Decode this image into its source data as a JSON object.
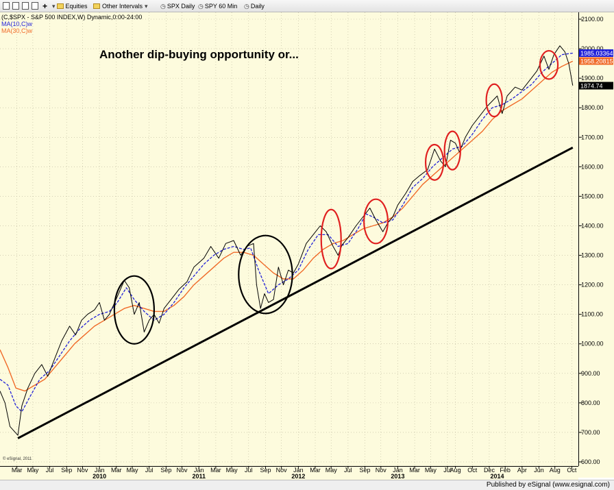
{
  "toolbar": {
    "equities_label": "Equities",
    "other_intervals_label": "Other Intervals",
    "spx_daily_label": "SPX Daily",
    "spy_60min_label": "SPY 60 Min",
    "daily_label": "Daily"
  },
  "legend": {
    "series_title": "(C,$SPX - S&P 500 INDEX,W) Dynamic,0:00-24:00",
    "ma10_label": "MA(10,C)w",
    "ma30_label": "MA(30,C)w"
  },
  "annotation_text": "Another dip-buying opportunity or...",
  "copyright": "© eSignal, 2011",
  "footer_text": "Published by eSignal (www.esignal.com)",
  "price_tags": {
    "ma10": "1985.03364",
    "ma30": "1958.20815",
    "last": "1874.74"
  },
  "colors": {
    "price": "#000000",
    "ma10": "#1f1fd8",
    "ma30": "#f06a28",
    "trendline": "#000000",
    "circles_2010_2011": "#000000",
    "circles_2012_2014": "#e02020",
    "background": "#fdfbdd"
  },
  "chart_data": {
    "type": "line",
    "title": "",
    "ylim": [
      600,
      2100
    ],
    "y_ticks": [
      "600.00",
      "700.00",
      "800.00",
      "900.00",
      "1000.00",
      "1100.00",
      "1200.00",
      "1300.00",
      "1400.00",
      "1500.00",
      "1600.00",
      "1700.00",
      "1800.00",
      "1900.00",
      "2000.00",
      "2100.00"
    ],
    "x_ticks": [
      {
        "label": "Mar",
        "t": 2009.17
      },
      {
        "label": "May",
        "t": 2009.33
      },
      {
        "label": "Jul",
        "t": 2009.5
      },
      {
        "label": "Sep",
        "t": 2009.67
      },
      {
        "label": "Nov",
        "t": 2009.83
      },
      {
        "label": "Jan",
        "t": 2010.0
      },
      {
        "label": "Mar",
        "t": 2010.17
      },
      {
        "label": "May",
        "t": 2010.33
      },
      {
        "label": "Jul",
        "t": 2010.5
      },
      {
        "label": "Sep",
        "t": 2010.67
      },
      {
        "label": "Nov",
        "t": 2010.83
      },
      {
        "label": "Jan",
        "t": 2011.0
      },
      {
        "label": "Mar",
        "t": 2011.17
      },
      {
        "label": "May",
        "t": 2011.33
      },
      {
        "label": "Jul",
        "t": 2011.5
      },
      {
        "label": "Sep",
        "t": 2011.67
      },
      {
        "label": "Nov",
        "t": 2011.83
      },
      {
        "label": "Jan",
        "t": 2012.0
      },
      {
        "label": "Mar",
        "t": 2012.17
      },
      {
        "label": "May",
        "t": 2012.33
      },
      {
        "label": "Jul",
        "t": 2012.5
      },
      {
        "label": "Sep",
        "t": 2012.67
      },
      {
        "label": "Nov",
        "t": 2012.83
      },
      {
        "label": "Jan",
        "t": 2013.0
      },
      {
        "label": "Mar",
        "t": 2013.17
      },
      {
        "label": "May",
        "t": 2013.33
      },
      {
        "label": "Jul",
        "t": 2013.5
      },
      {
        "label": "Aug",
        "t": 2013.58
      },
      {
        "label": "Oct",
        "t": 2013.75
      },
      {
        "label": "Dec",
        "t": 2013.92
      },
      {
        "label": "Feb",
        "t": 2014.08
      },
      {
        "label": "Apr",
        "t": 2014.25
      },
      {
        "label": "Jun",
        "t": 2014.42
      },
      {
        "label": "Aug",
        "t": 2014.58
      },
      {
        "label": "Oct",
        "t": 2014.75
      }
    ],
    "year_labels": [
      {
        "label": "2010",
        "t": 2010.0
      },
      {
        "label": "2011",
        "t": 2011.0
      },
      {
        "label": "2012",
        "t": 2012.0
      },
      {
        "label": "2013",
        "t": 2013.0
      },
      {
        "label": "2014",
        "t": 2014.0
      }
    ],
    "series": [
      {
        "name": "(C,$SPX - S&P 500 INDEX,W)",
        "role": "price",
        "points": [
          [
            2009.0,
            840
          ],
          [
            2009.05,
            800
          ],
          [
            2009.1,
            720
          ],
          [
            2009.18,
            690
          ],
          [
            2009.22,
            790
          ],
          [
            2009.28,
            850
          ],
          [
            2009.35,
            900
          ],
          [
            2009.42,
            930
          ],
          [
            2009.48,
            890
          ],
          [
            2009.55,
            950
          ],
          [
            2009.62,
            1010
          ],
          [
            2009.7,
            1060
          ],
          [
            2009.76,
            1030
          ],
          [
            2009.82,
            1080
          ],
          [
            2009.88,
            1100
          ],
          [
            2009.95,
            1115
          ],
          [
            2010.0,
            1140
          ],
          [
            2010.05,
            1080
          ],
          [
            2010.1,
            1100
          ],
          [
            2010.18,
            1160
          ],
          [
            2010.25,
            1215
          ],
          [
            2010.3,
            1190
          ],
          [
            2010.35,
            1100
          ],
          [
            2010.4,
            1140
          ],
          [
            2010.45,
            1040
          ],
          [
            2010.5,
            1080
          ],
          [
            2010.55,
            1100
          ],
          [
            2010.6,
            1070
          ],
          [
            2010.65,
            1120
          ],
          [
            2010.72,
            1150
          ],
          [
            2010.8,
            1185
          ],
          [
            2010.88,
            1210
          ],
          [
            2010.95,
            1260
          ],
          [
            2011.05,
            1290
          ],
          [
            2011.12,
            1330
          ],
          [
            2011.2,
            1290
          ],
          [
            2011.27,
            1340
          ],
          [
            2011.35,
            1350
          ],
          [
            2011.42,
            1300
          ],
          [
            2011.48,
            1330
          ],
          [
            2011.55,
            1340
          ],
          [
            2011.58,
            1200
          ],
          [
            2011.62,
            1120
          ],
          [
            2011.66,
            1170
          ],
          [
            2011.7,
            1140
          ],
          [
            2011.75,
            1150
          ],
          [
            2011.8,
            1260
          ],
          [
            2011.85,
            1200
          ],
          [
            2011.9,
            1250
          ],
          [
            2011.95,
            1240
          ],
          [
            2012.0,
            1270
          ],
          [
            2012.08,
            1340
          ],
          [
            2012.15,
            1370
          ],
          [
            2012.22,
            1400
          ],
          [
            2012.28,
            1380
          ],
          [
            2012.35,
            1330
          ],
          [
            2012.4,
            1300
          ],
          [
            2012.44,
            1335
          ],
          [
            2012.5,
            1360
          ],
          [
            2012.58,
            1400
          ],
          [
            2012.65,
            1430
          ],
          [
            2012.72,
            1460
          ],
          [
            2012.78,
            1420
          ],
          [
            2012.85,
            1380
          ],
          [
            2012.9,
            1410
          ],
          [
            2012.95,
            1430
          ],
          [
            2013.0,
            1470
          ],
          [
            2013.08,
            1510
          ],
          [
            2013.15,
            1550
          ],
          [
            2013.22,
            1570
          ],
          [
            2013.3,
            1590
          ],
          [
            2013.37,
            1660
          ],
          [
            2013.43,
            1620
          ],
          [
            2013.48,
            1600
          ],
          [
            2013.53,
            1690
          ],
          [
            2013.58,
            1680
          ],
          [
            2013.62,
            1650
          ],
          [
            2013.68,
            1700
          ],
          [
            2013.75,
            1740
          ],
          [
            2013.82,
            1770
          ],
          [
            2013.9,
            1805
          ],
          [
            2014.0,
            1840
          ],
          [
            2014.05,
            1780
          ],
          [
            2014.1,
            1840
          ],
          [
            2014.18,
            1870
          ],
          [
            2014.25,
            1860
          ],
          [
            2014.32,
            1890
          ],
          [
            2014.4,
            1925
          ],
          [
            2014.47,
            1975
          ],
          [
            2014.52,
            1930
          ],
          [
            2014.57,
            1980
          ],
          [
            2014.63,
            2010
          ],
          [
            2014.68,
            1990
          ],
          [
            2014.72,
            1950
          ],
          [
            2014.76,
            1875
          ]
        ]
      },
      {
        "name": "MA(10,C)w",
        "role": "ma10",
        "points": [
          [
            2009.0,
            880
          ],
          [
            2009.08,
            860
          ],
          [
            2009.16,
            790
          ],
          [
            2009.22,
            770
          ],
          [
            2009.3,
            820
          ],
          [
            2009.4,
            880
          ],
          [
            2009.5,
            910
          ],
          [
            2009.6,
            960
          ],
          [
            2009.7,
            1010
          ],
          [
            2009.8,
            1050
          ],
          [
            2009.9,
            1080
          ],
          [
            2010.0,
            1100
          ],
          [
            2010.1,
            1110
          ],
          [
            2010.18,
            1140
          ],
          [
            2010.27,
            1190
          ],
          [
            2010.35,
            1150
          ],
          [
            2010.45,
            1110
          ],
          [
            2010.55,
            1080
          ],
          [
            2010.65,
            1100
          ],
          [
            2010.75,
            1140
          ],
          [
            2010.85,
            1190
          ],
          [
            2010.95,
            1230
          ],
          [
            2011.05,
            1270
          ],
          [
            2011.15,
            1300
          ],
          [
            2011.25,
            1320
          ],
          [
            2011.35,
            1330
          ],
          [
            2011.45,
            1320
          ],
          [
            2011.52,
            1325
          ],
          [
            2011.6,
            1250
          ],
          [
            2011.7,
            1170
          ],
          [
            2011.8,
            1200
          ],
          [
            2011.9,
            1220
          ],
          [
            2012.0,
            1250
          ],
          [
            2012.1,
            1320
          ],
          [
            2012.2,
            1370
          ],
          [
            2012.3,
            1370
          ],
          [
            2012.4,
            1330
          ],
          [
            2012.5,
            1340
          ],
          [
            2012.6,
            1390
          ],
          [
            2012.68,
            1440
          ],
          [
            2012.75,
            1430
          ],
          [
            2012.85,
            1410
          ],
          [
            2012.95,
            1420
          ],
          [
            2013.05,
            1470
          ],
          [
            2013.15,
            1530
          ],
          [
            2013.25,
            1560
          ],
          [
            2013.35,
            1600
          ],
          [
            2013.45,
            1630
          ],
          [
            2013.55,
            1660
          ],
          [
            2013.65,
            1670
          ],
          [
            2013.75,
            1710
          ],
          [
            2013.85,
            1760
          ],
          [
            2013.95,
            1800
          ],
          [
            2014.05,
            1810
          ],
          [
            2014.15,
            1830
          ],
          [
            2014.25,
            1855
          ],
          [
            2014.35,
            1880
          ],
          [
            2014.45,
            1920
          ],
          [
            2014.55,
            1950
          ],
          [
            2014.65,
            1980
          ],
          [
            2014.76,
            1985
          ]
        ]
      },
      {
        "name": "MA(30,C)w",
        "role": "ma30",
        "points": [
          [
            2009.0,
            980
          ],
          [
            2009.08,
            920
          ],
          [
            2009.16,
            850
          ],
          [
            2009.25,
            840
          ],
          [
            2009.35,
            860
          ],
          [
            2009.45,
            880
          ],
          [
            2009.55,
            920
          ],
          [
            2009.65,
            960
          ],
          [
            2009.75,
            1000
          ],
          [
            2009.85,
            1030
          ],
          [
            2009.95,
            1060
          ],
          [
            2010.05,
            1080
          ],
          [
            2010.15,
            1100
          ],
          [
            2010.25,
            1120
          ],
          [
            2010.35,
            1130
          ],
          [
            2010.45,
            1120
          ],
          [
            2010.55,
            1110
          ],
          [
            2010.65,
            1110
          ],
          [
            2010.75,
            1130
          ],
          [
            2010.85,
            1160
          ],
          [
            2010.95,
            1200
          ],
          [
            2011.05,
            1230
          ],
          [
            2011.15,
            1260
          ],
          [
            2011.25,
            1290
          ],
          [
            2011.35,
            1310
          ],
          [
            2011.45,
            1310
          ],
          [
            2011.55,
            1300
          ],
          [
            2011.65,
            1270
          ],
          [
            2011.75,
            1240
          ],
          [
            2011.85,
            1220
          ],
          [
            2011.95,
            1220
          ],
          [
            2012.05,
            1250
          ],
          [
            2012.15,
            1290
          ],
          [
            2012.25,
            1320
          ],
          [
            2012.35,
            1340
          ],
          [
            2012.45,
            1350
          ],
          [
            2012.55,
            1370
          ],
          [
            2012.65,
            1390
          ],
          [
            2012.75,
            1400
          ],
          [
            2012.85,
            1410
          ],
          [
            2012.95,
            1430
          ],
          [
            2013.05,
            1460
          ],
          [
            2013.15,
            1500
          ],
          [
            2013.25,
            1540
          ],
          [
            2013.35,
            1570
          ],
          [
            2013.45,
            1600
          ],
          [
            2013.55,
            1630
          ],
          [
            2013.65,
            1660
          ],
          [
            2013.75,
            1690
          ],
          [
            2013.85,
            1720
          ],
          [
            2013.95,
            1760
          ],
          [
            2014.05,
            1790
          ],
          [
            2014.15,
            1810
          ],
          [
            2014.25,
            1830
          ],
          [
            2014.35,
            1860
          ],
          [
            2014.45,
            1890
          ],
          [
            2014.55,
            1920
          ],
          [
            2014.65,
            1940
          ],
          [
            2014.76,
            1958
          ]
        ]
      },
      {
        "name": "",
        "role": "trendline",
        "points": [
          [
            2009.18,
            680
          ],
          [
            2014.76,
            1665
          ]
        ]
      }
    ],
    "annotations": [
      {
        "kind": "ellipse",
        "color": "circles_2010_2011",
        "cx": 2010.35,
        "cy": 1115,
        "rx": 0.2,
        "ry": 115
      },
      {
        "kind": "ellipse",
        "color": "circles_2010_2011",
        "cx": 2011.67,
        "cy": 1235,
        "rx": 0.27,
        "ry": 132
      },
      {
        "kind": "ellipse",
        "color": "circles_2012_2014",
        "cx": 2012.33,
        "cy": 1355,
        "rx": 0.1,
        "ry": 100
      },
      {
        "kind": "ellipse",
        "color": "circles_2012_2014",
        "cx": 2012.78,
        "cy": 1415,
        "rx": 0.12,
        "ry": 75
      },
      {
        "kind": "ellipse",
        "color": "circles_2012_2014",
        "cx": 2013.37,
        "cy": 1615,
        "rx": 0.09,
        "ry": 60
      },
      {
        "kind": "ellipse",
        "color": "circles_2012_2014",
        "cx": 2013.55,
        "cy": 1655,
        "rx": 0.08,
        "ry": 65
      },
      {
        "kind": "ellipse",
        "color": "circles_2012_2014",
        "cx": 2013.97,
        "cy": 1825,
        "rx": 0.08,
        "ry": 55
      },
      {
        "kind": "ellipse",
        "color": "circles_2012_2014",
        "cx": 2014.52,
        "cy": 1945,
        "rx": 0.09,
        "ry": 48
      }
    ]
  }
}
